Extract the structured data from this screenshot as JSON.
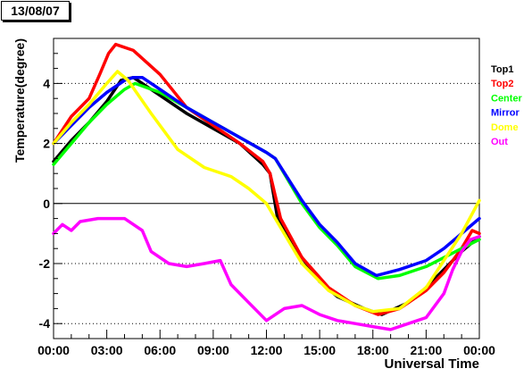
{
  "stamp": "13/08/07",
  "chart_data": {
    "type": "line",
    "xlabel": "Universal Time",
    "ylabel": "Temperature(degree)",
    "xlim": [
      0,
      24
    ],
    "ylim": [
      -4.5,
      5.5
    ],
    "x_ticks": [
      0,
      3,
      6,
      9,
      12,
      15,
      18,
      21,
      24
    ],
    "x_tick_labels": [
      "00:00",
      "03:00",
      "06:00",
      "09:00",
      "12:00",
      "15:00",
      "18:00",
      "21:00",
      "00:00"
    ],
    "y_ticks": [
      -4,
      -2,
      0,
      2,
      4
    ],
    "y_tick_labels": [
      "-4",
      "-2",
      "0",
      "2",
      "4"
    ],
    "zero_line": true,
    "legend_position": "right",
    "series": [
      {
        "name": "Top1",
        "color": "#000000",
        "points": [
          [
            0,
            1.4
          ],
          [
            1,
            2.1
          ],
          [
            2,
            2.7
          ],
          [
            3,
            3.4
          ],
          [
            3.8,
            4.1
          ],
          [
            4.5,
            4.2
          ],
          [
            6,
            3.6
          ],
          [
            7.5,
            3.0
          ],
          [
            9,
            2.5
          ],
          [
            10.5,
            2.0
          ],
          [
            11.8,
            1.3
          ],
          [
            12.2,
            1.0
          ],
          [
            12.6,
            -0.4
          ],
          [
            13.5,
            -1.4
          ],
          [
            15,
            -2.6
          ],
          [
            16,
            -3.1
          ],
          [
            17.5,
            -3.5
          ],
          [
            18.5,
            -3.7
          ],
          [
            20,
            -3.3
          ],
          [
            21,
            -2.8
          ],
          [
            22,
            -2.2
          ],
          [
            23,
            -1.6
          ],
          [
            24,
            -1.1
          ]
        ]
      },
      {
        "name": "Top2",
        "color": "#ff0000",
        "points": [
          [
            0,
            2.0
          ],
          [
            1,
            2.9
          ],
          [
            2,
            3.5
          ],
          [
            2.6,
            4.3
          ],
          [
            3.1,
            5.0
          ],
          [
            3.5,
            5.3
          ],
          [
            4.5,
            5.1
          ],
          [
            6,
            4.3
          ],
          [
            7.5,
            3.2
          ],
          [
            9,
            2.6
          ],
          [
            10.5,
            2.0
          ],
          [
            11.8,
            1.4
          ],
          [
            12.2,
            1.0
          ],
          [
            12.8,
            -0.5
          ],
          [
            14,
            -1.8
          ],
          [
            15.5,
            -2.8
          ],
          [
            17,
            -3.4
          ],
          [
            18.3,
            -3.7
          ],
          [
            19.5,
            -3.5
          ],
          [
            21,
            -2.9
          ],
          [
            22,
            -2.3
          ],
          [
            23,
            -1.5
          ],
          [
            23.6,
            -0.9
          ],
          [
            24,
            -1.0
          ]
        ]
      },
      {
        "name": "Center",
        "color": "#00ff00",
        "points": [
          [
            0,
            1.3
          ],
          [
            1,
            2.0
          ],
          [
            2,
            2.7
          ],
          [
            3,
            3.3
          ],
          [
            4,
            3.8
          ],
          [
            4.6,
            4.0
          ],
          [
            6,
            3.7
          ],
          [
            7.5,
            3.2
          ],
          [
            9,
            2.7
          ],
          [
            10.5,
            2.2
          ],
          [
            12,
            1.7
          ],
          [
            12.5,
            1.5
          ],
          [
            14,
            0.0
          ],
          [
            15,
            -0.8
          ],
          [
            16,
            -1.4
          ],
          [
            17,
            -2.1
          ],
          [
            18.3,
            -2.5
          ],
          [
            19.5,
            -2.4
          ],
          [
            21,
            -2.1
          ],
          [
            22,
            -1.8
          ],
          [
            23,
            -1.5
          ],
          [
            24,
            -1.2
          ]
        ]
      },
      {
        "name": "Mirror",
        "color": "#0000ff",
        "points": [
          [
            0,
            2.0
          ],
          [
            1,
            2.6
          ],
          [
            2,
            3.2
          ],
          [
            3,
            3.7
          ],
          [
            4,
            4.1
          ],
          [
            4.5,
            4.2
          ],
          [
            5,
            4.2
          ],
          [
            6,
            3.8
          ],
          [
            7.5,
            3.2
          ],
          [
            9,
            2.7
          ],
          [
            10.5,
            2.2
          ],
          [
            12,
            1.7
          ],
          [
            12.5,
            1.5
          ],
          [
            14,
            0.1
          ],
          [
            15,
            -0.7
          ],
          [
            16,
            -1.3
          ],
          [
            17,
            -2.0
          ],
          [
            18.2,
            -2.4
          ],
          [
            19.5,
            -2.2
          ],
          [
            21,
            -1.9
          ],
          [
            22,
            -1.5
          ],
          [
            23,
            -1.0
          ],
          [
            24,
            -0.5
          ]
        ]
      },
      {
        "name": "Dome",
        "color": "#ffff00",
        "points": [
          [
            0,
            2.0
          ],
          [
            1,
            2.7
          ],
          [
            2,
            3.3
          ],
          [
            3,
            4.0
          ],
          [
            3.6,
            4.4
          ],
          [
            4.2,
            4.1
          ],
          [
            5.5,
            3.0
          ],
          [
            7,
            1.8
          ],
          [
            8.5,
            1.2
          ],
          [
            10,
            0.9
          ],
          [
            11,
            0.5
          ],
          [
            12,
            0.0
          ],
          [
            12.5,
            -0.5
          ],
          [
            14,
            -2.0
          ],
          [
            15.5,
            -2.9
          ],
          [
            17,
            -3.4
          ],
          [
            18,
            -3.6
          ],
          [
            19.5,
            -3.5
          ],
          [
            21,
            -2.8
          ],
          [
            22,
            -1.9
          ],
          [
            23,
            -1.0
          ],
          [
            24,
            0.1
          ]
        ]
      },
      {
        "name": "Out",
        "color": "#ff00ff",
        "points": [
          [
            0,
            -1.0
          ],
          [
            0.5,
            -0.7
          ],
          [
            1,
            -0.9
          ],
          [
            1.5,
            -0.6
          ],
          [
            2.5,
            -0.5
          ],
          [
            3.2,
            -0.5
          ],
          [
            4,
            -0.5
          ],
          [
            5,
            -0.9
          ],
          [
            5.5,
            -1.6
          ],
          [
            6.5,
            -2.0
          ],
          [
            7.5,
            -2.1
          ],
          [
            8.5,
            -2.0
          ],
          [
            9.4,
            -1.9
          ],
          [
            10,
            -2.7
          ],
          [
            11,
            -3.3
          ],
          [
            12,
            -3.9
          ],
          [
            13,
            -3.5
          ],
          [
            14,
            -3.4
          ],
          [
            15,
            -3.7
          ],
          [
            16,
            -3.9
          ],
          [
            17,
            -4.0
          ],
          [
            18,
            -4.1
          ],
          [
            19,
            -4.2
          ],
          [
            20,
            -4.0
          ],
          [
            21,
            -3.8
          ],
          [
            22,
            -3.0
          ],
          [
            22.5,
            -2.2
          ],
          [
            23,
            -1.6
          ],
          [
            23.5,
            -1.2
          ],
          [
            24,
            -1.1
          ]
        ]
      }
    ]
  }
}
